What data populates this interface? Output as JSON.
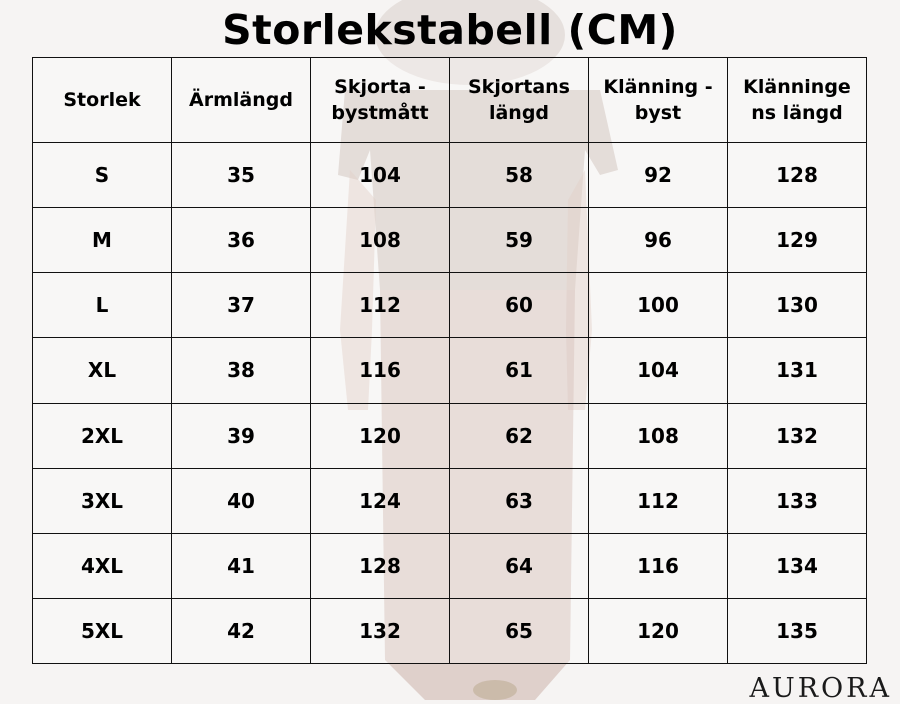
{
  "title": "Storlekstabell (CM)",
  "brand": "AURORA",
  "colors": {
    "background": "#f6f4f3",
    "text": "#000000",
    "grid": "#111111"
  },
  "table": {
    "headers": [
      "Storlek",
      "Ärmlängd",
      "Skjorta - bystmått",
      "Skjortans längd",
      "Klänning - byst",
      "Klänninge ns längd"
    ],
    "rows": [
      [
        "S",
        "35",
        "104",
        "58",
        "92",
        "128"
      ],
      [
        "M",
        "36",
        "108",
        "59",
        "96",
        "129"
      ],
      [
        "L",
        "37",
        "112",
        "60",
        "100",
        "130"
      ],
      [
        "XL",
        "38",
        "116",
        "61",
        "104",
        "131"
      ],
      [
        "2XL",
        "39",
        "120",
        "62",
        "108",
        "132"
      ],
      [
        "3XL",
        "40",
        "124",
        "63",
        "112",
        "133"
      ],
      [
        "4XL",
        "41",
        "128",
        "64",
        "116",
        "134"
      ],
      [
        "5XL",
        "42",
        "132",
        "65",
        "120",
        "135"
      ]
    ]
  }
}
